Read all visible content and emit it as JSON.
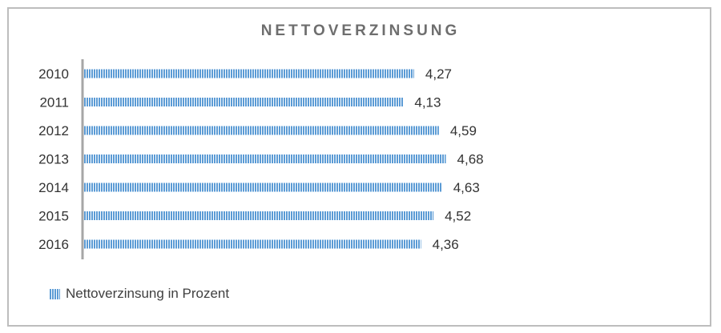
{
  "chart_data": {
    "type": "bar",
    "orientation": "horizontal",
    "title": "NETTOVERZINSUNG",
    "categories": [
      "2010",
      "2011",
      "2012",
      "2013",
      "2014",
      "2015",
      "2016"
    ],
    "series": [
      {
        "name": "Nettoverzinsung in Prozent",
        "values": [
          4.27,
          4.13,
          4.59,
          4.68,
          4.63,
          4.52,
          4.36
        ],
        "value_labels": [
          "4,27",
          "4,13",
          "4,59",
          "4,68",
          "4,63",
          "4,52",
          "4,36"
        ]
      }
    ],
    "xlim": [
      0,
      5
    ],
    "grid": false,
    "legend_position": "bottom-left",
    "colors": {
      "bar": "#5b9bd5",
      "axis": "#a6a6a6",
      "border": "#bdbdbd",
      "title": "#6e6e6e"
    }
  }
}
